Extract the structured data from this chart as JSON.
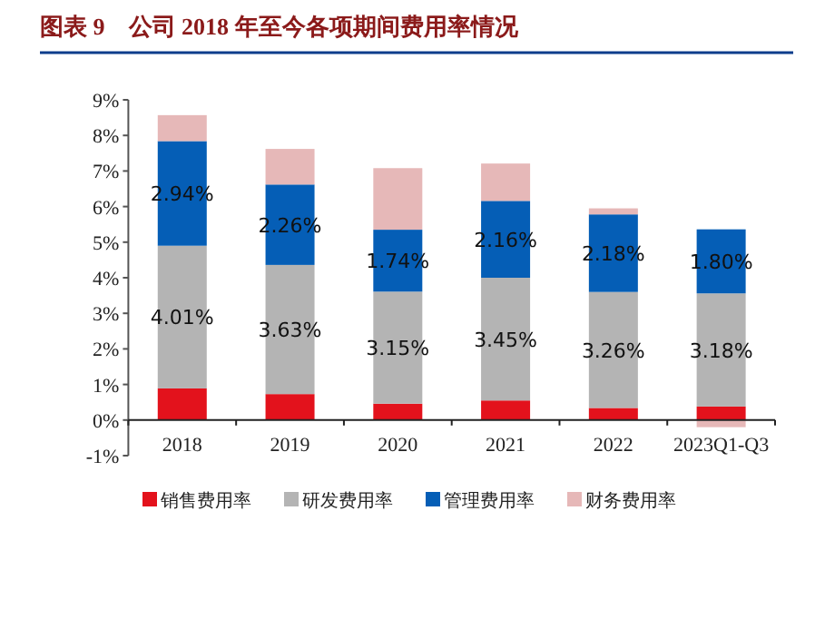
{
  "chart_data": {
    "type": "bar",
    "stacked": true,
    "title": "图表 9　公司 2018 年至今各项期间费用率情况",
    "categories": [
      "2018",
      "2019",
      "2020",
      "2021",
      "2022",
      "2023Q1-Q3"
    ],
    "series": [
      {
        "name": "销售费用率",
        "color": "#e3121c",
        "values": [
          0.89,
          0.73,
          0.46,
          0.55,
          0.34,
          0.38
        ]
      },
      {
        "name": "研发费用率",
        "color": "#b4b4b4",
        "values": [
          4.01,
          3.63,
          3.15,
          3.45,
          3.26,
          3.18
        ],
        "value_labels": [
          "4.01%",
          "3.63%",
          "3.15%",
          "3.45%",
          "3.26%",
          "3.18%"
        ]
      },
      {
        "name": "管理费用率",
        "color": "#055eb6",
        "values": [
          2.94,
          2.26,
          1.74,
          2.16,
          2.18,
          1.8
        ],
        "value_labels": [
          "2.94%",
          "2.26%",
          "1.74%",
          "2.16%",
          "2.18%",
          "1.80%"
        ]
      },
      {
        "name": "财务费用率",
        "color": "#e6b8b8",
        "values": [
          0.73,
          1.0,
          1.73,
          1.05,
          0.17,
          -0.2
        ]
      }
    ],
    "ylim": [
      -1,
      9
    ],
    "yticks": [
      {
        "value": -1,
        "label": "-1%"
      },
      {
        "value": 0,
        "label": "0%"
      },
      {
        "value": 1,
        "label": "1%"
      },
      {
        "value": 2,
        "label": "2%"
      },
      {
        "value": 3,
        "label": "3%"
      },
      {
        "value": 4,
        "label": "4%"
      },
      {
        "value": 5,
        "label": "5%"
      },
      {
        "value": 6,
        "label": "6%"
      },
      {
        "value": 7,
        "label": "7%"
      },
      {
        "value": 8,
        "label": "8%"
      },
      {
        "value": 9,
        "label": "9%"
      }
    ],
    "legend": "bottom"
  }
}
